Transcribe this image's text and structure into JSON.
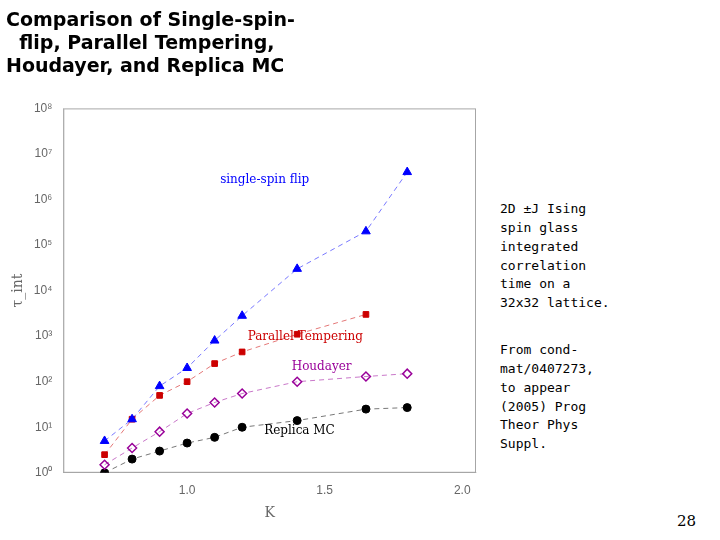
{
  "chart_data": {
    "type": "line",
    "title": [
      "Comparison of Single-spin-",
      "  flip, Parallel Tempering,",
      "Houdayer, and Replica MC"
    ],
    "x_label": "K",
    "y_label": "τ_int",
    "log": "y",
    "grid": false,
    "xlim": [
      0.55,
      2.05
    ],
    "xticks": [
      {
        "value": 1.0,
        "label": "1.0"
      },
      {
        "value": 1.5,
        "label": "1.5"
      },
      {
        "value": 2.0,
        "label": "2.0"
      }
    ],
    "ylim": [
      1,
      100000000
    ],
    "yticks": [
      {
        "value": 1,
        "label": "10⁰"
      },
      {
        "value": 10,
        "label": "10¹"
      },
      {
        "value": 100,
        "label": "10²"
      },
      {
        "value": 1000,
        "label": "10³"
      },
      {
        "value": 10000,
        "label": "10⁴"
      },
      {
        "value": 100000,
        "label": "10⁵"
      },
      {
        "value": 1000000,
        "label": "10⁶"
      },
      {
        "value": 10000000,
        "label": "10⁷"
      },
      {
        "value": 100000000,
        "label": "10⁸"
      }
    ],
    "series": [
      {
        "color": "#0000ff",
        "marker": "triangle",
        "line_style": "dashed",
        "x": [
          0.7,
          0.8,
          0.9,
          1.0,
          1.1,
          1.2,
          1.4,
          1.65,
          1.8
        ],
        "values": [
          5.0,
          15.0,
          80.0,
          200.0,
          800.0,
          2800.0,
          30000.0,
          200000.0,
          4000000.0
        ]
      },
      {
        "color": "#cc0000",
        "marker": "square",
        "line_style": "dashed",
        "x": [
          0.7,
          0.8,
          0.9,
          1.0,
          1.1,
          1.2,
          1.4,
          1.65
        ],
        "values": [
          2.5,
          15.0,
          50.0,
          100.0,
          250.0,
          450.0,
          1100.0,
          3000.0
        ]
      },
      {
        "color": "#990099",
        "marker": "hollow_diamond",
        "line_style": "dashed",
        "x": [
          0.7,
          0.8,
          0.9,
          1.0,
          1.1,
          1.2,
          1.4,
          1.65,
          1.8
        ],
        "values": [
          1.5,
          3.5,
          8.0,
          20.0,
          35.0,
          55.0,
          100.0,
          130.0,
          150.0
        ]
      },
      {
        "color": "#000000",
        "marker": "circle",
        "line_style": "dashed",
        "x": [
          0.7,
          0.8,
          0.9,
          1.0,
          1.1,
          1.2,
          1.4,
          1.65,
          1.8
        ],
        "values": [
          1.0,
          2.0,
          3.0,
          4.5,
          6.0,
          10.0,
          14.0,
          25.0,
          27.0
        ]
      }
    ],
    "annotations": [
      {
        "text": "single-spin flip",
        "x": 1.12,
        "y": 2000000.0,
        "color": "#0000ff"
      },
      {
        "text": "Parallel Tempering",
        "x": 1.22,
        "y": 700.0,
        "color": "#cc0000"
      },
      {
        "text": "Houdayer",
        "x": 1.38,
        "y": 160.0,
        "color": "#990099"
      },
      {
        "text": "Replica MC",
        "x": 1.28,
        "y": 6.0,
        "color": "#000000"
      }
    ],
    "side_notes": [
      "2D ±J Ising\nspin glass\nintegrated\ncorrelation\ntime on a\n32x32 lattice.",
      "From cond-\nmat/0407273,\nto appear\n(2005) Prog\nTheor Phys\nSuppl."
    ],
    "page_number": "28"
  }
}
